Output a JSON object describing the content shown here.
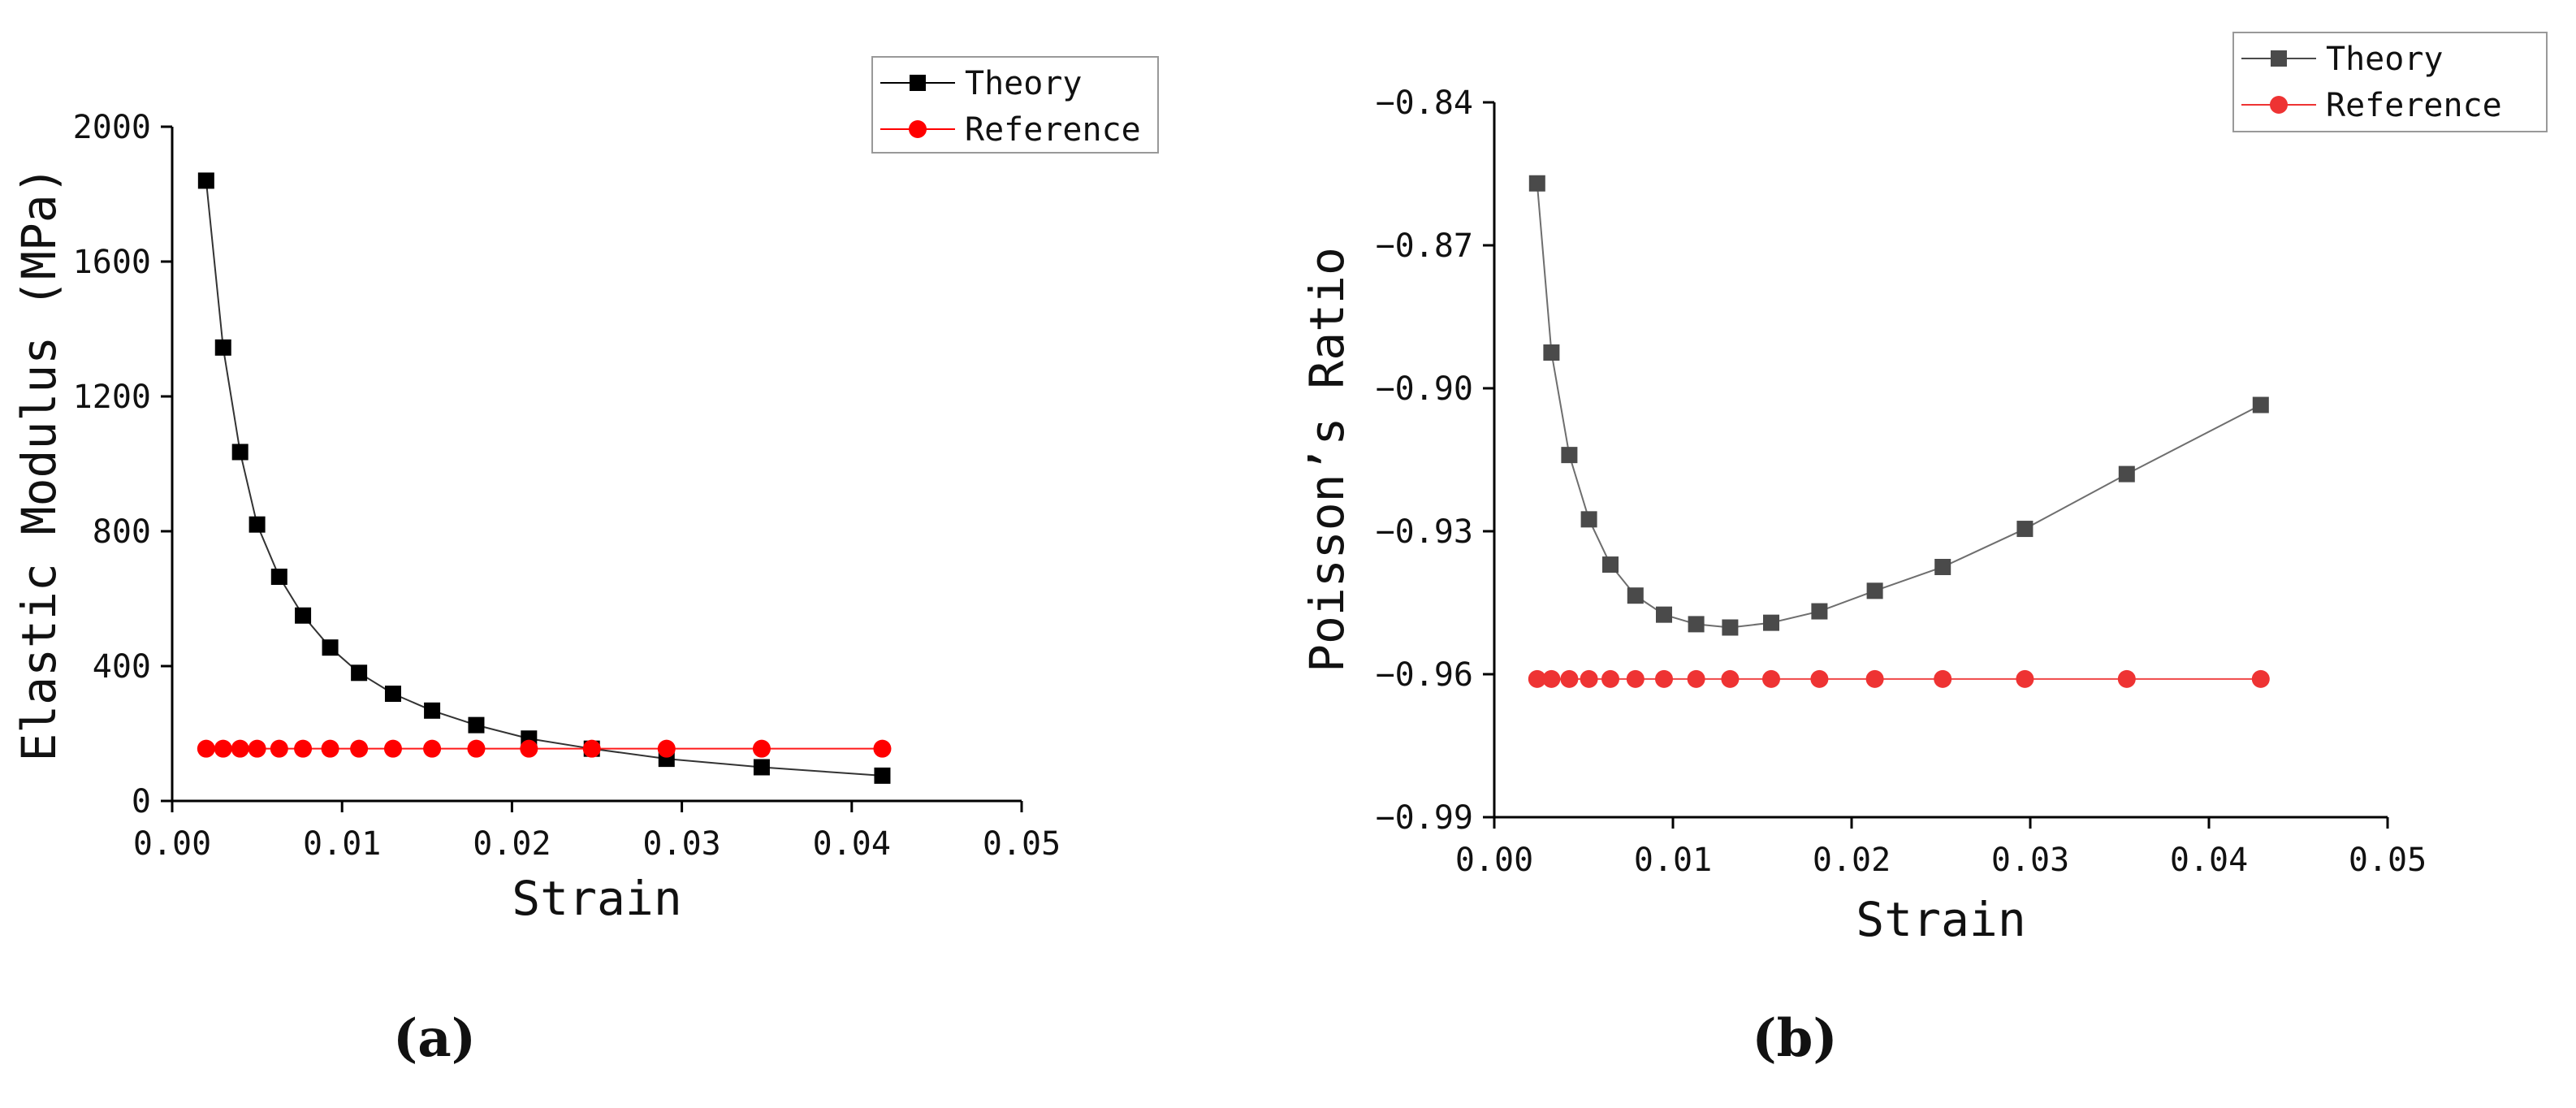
{
  "chart_data": [
    {
      "type": "line",
      "caption": "(a)",
      "title": "",
      "xlabel": "Strain",
      "ylabel": "Elastic Modulus (MPa)",
      "xlim": [
        0.0,
        0.05
      ],
      "ylim": [
        0,
        2000
      ],
      "x_ticks": [
        "0.00",
        "0.01",
        "0.02",
        "0.03",
        "0.04",
        "0.05"
      ],
      "y_ticks": [
        "0",
        "400",
        "800",
        "1200",
        "1600",
        "2000"
      ],
      "legend": {
        "position": "top-right"
      },
      "series": [
        {
          "name": "Theory",
          "color": "#000000",
          "marker": "square",
          "x": [
            0.002,
            0.003,
            0.004,
            0.005,
            0.0063,
            0.0077,
            0.0093,
            0.011,
            0.013,
            0.0153,
            0.0179,
            0.021,
            0.0247,
            0.0291,
            0.0347,
            0.0418
          ],
          "y": [
            1840,
            1345,
            1035,
            820,
            665,
            550,
            455,
            380,
            318,
            268,
            225,
            185,
            155,
            125,
            100,
            75
          ]
        },
        {
          "name": "Reference",
          "color": "#ff0000",
          "marker": "circle",
          "x": [
            0.002,
            0.003,
            0.004,
            0.005,
            0.0063,
            0.0077,
            0.0093,
            0.011,
            0.013,
            0.0153,
            0.0179,
            0.021,
            0.0247,
            0.0291,
            0.0347,
            0.0418
          ],
          "y": [
            155,
            155,
            155,
            155,
            155,
            155,
            155,
            155,
            155,
            155,
            155,
            155,
            155,
            155,
            155,
            155
          ]
        }
      ]
    },
    {
      "type": "line",
      "caption": "(b)",
      "title": "",
      "xlabel": "Strain",
      "ylabel": "Poisson’s Ratio",
      "xlim": [
        0.0,
        0.05
      ],
      "ylim": [
        -0.99,
        -0.84
      ],
      "x_ticks": [
        "0.00",
        "0.01",
        "0.02",
        "0.03",
        "0.04",
        "0.05"
      ],
      "y_ticks": [
        "−0.99",
        "−0.96",
        "−0.93",
        "−0.90",
        "−0.87",
        "−0.84"
      ],
      "legend": {
        "position": "top-right"
      },
      "series": [
        {
          "name": "Theory",
          "color": "#4a4a4a",
          "marker": "square",
          "x": [
            0.0024,
            0.0032,
            0.0042,
            0.0053,
            0.0065,
            0.0079,
            0.0095,
            0.0113,
            0.0132,
            0.0155,
            0.0182,
            0.0213,
            0.0251,
            0.0297,
            0.0354,
            0.0429
          ],
          "y": [
            -0.857,
            -0.8925,
            -0.914,
            -0.9275,
            -0.937,
            -0.9435,
            -0.9475,
            -0.9495,
            -0.9502,
            -0.9492,
            -0.9468,
            -0.9425,
            -0.9375,
            -0.9295,
            -0.918,
            -0.9035
          ]
        },
        {
          "name": "Reference",
          "color": "#ee3333",
          "marker": "circle",
          "x": [
            0.0024,
            0.0032,
            0.0042,
            0.0053,
            0.0065,
            0.0079,
            0.0095,
            0.0113,
            0.0132,
            0.0155,
            0.0182,
            0.0213,
            0.0251,
            0.0297,
            0.0354,
            0.0429
          ],
          "y": [
            -0.961,
            -0.961,
            -0.961,
            -0.961,
            -0.961,
            -0.961,
            -0.961,
            -0.961,
            -0.961,
            -0.961,
            -0.961,
            -0.961,
            -0.961,
            -0.961,
            -0.961,
            -0.961
          ]
        }
      ]
    }
  ]
}
